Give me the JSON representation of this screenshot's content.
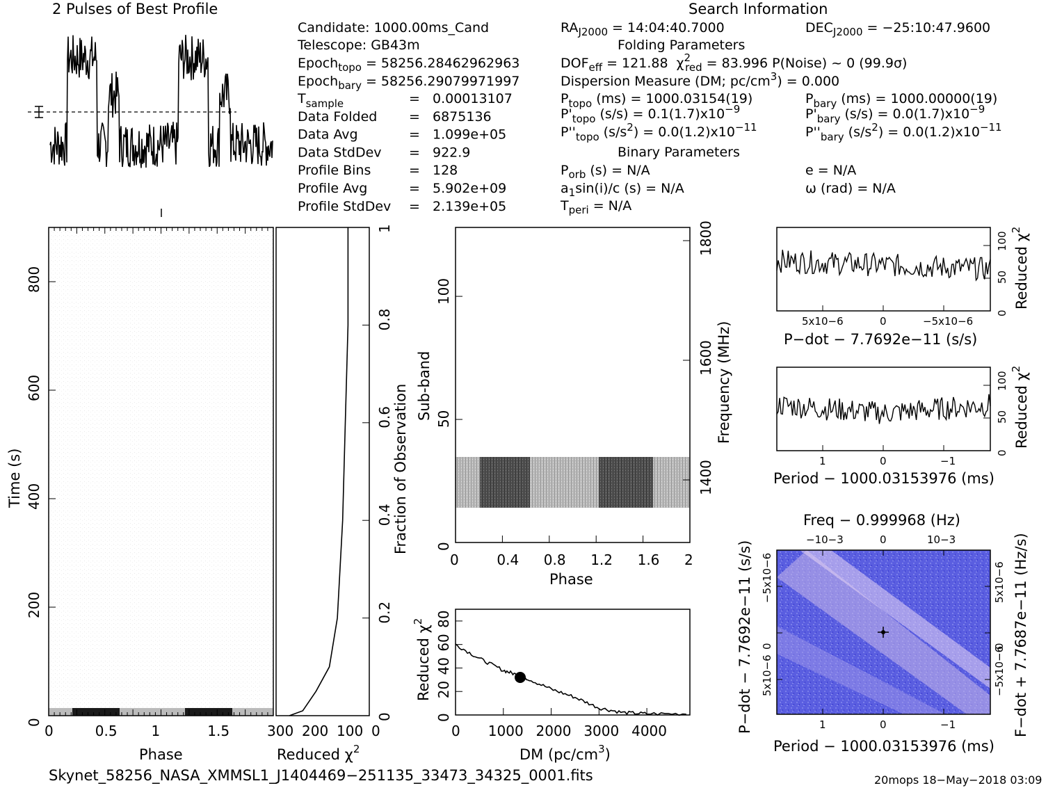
{
  "title_profile": "2 Pulses of Best Profile",
  "title_search": "Search Information",
  "info": {
    "candidate": "Candidate:  1000.00ms_Cand",
    "telescope": "Telescope:  GB43m",
    "epoch_topo_label": "Epoch",
    "epoch_topo_sub": "topo",
    "epoch_topo_val": "= 58256.28462962963",
    "epoch_bary_label": "Epoch",
    "epoch_bary_sub": "bary",
    "epoch_bary_val": "= 58256.29079971997",
    "tsample_label": "T",
    "tsample_sub": "sample",
    "rows": [
      {
        "label": "",
        "eq": "=",
        "val": "0.00013107"
      },
      {
        "label": "Data Folded",
        "eq": "=",
        "val": "6875136"
      },
      {
        "label": "Data Avg",
        "eq": "=",
        "val": "1.099e+05"
      },
      {
        "label": "Data StdDev",
        "eq": "=",
        "val": "922.9"
      },
      {
        "label": "Profile Bins",
        "eq": "=",
        "val": "128"
      },
      {
        "label": "Profile Avg",
        "eq": "=",
        "val": "5.902e+09"
      },
      {
        "label": "Profile StdDev",
        "eq": "=",
        "val": "2.139e+05"
      }
    ]
  },
  "search": {
    "ra": "RA",
    "ra_sub": "J2000",
    "ra_val": "= 14:04:40.7000",
    "dec": "DEC",
    "dec_sub": "J2000",
    "dec_val": "= −25:10:47.9600",
    "folding_title": "Folding Parameters",
    "dof": "DOF",
    "dof_sub": "eff",
    "dof_val": "= 121.88",
    "chi": "χ",
    "chi_sup": "2",
    "chi_sub": "red",
    "chi_val": "= 83.996  P(Noise) ~ 0   (99.9σ)",
    "dm_line": "Dispersion Measure (DM; pc/cm",
    "dm_sup": "3",
    "dm_val": ") = 0.000",
    "ptopo": "P",
    "ptopo_sub": "topo",
    "ptopo_val": "(ms) =  1000.03154(19)",
    "pbary": "P",
    "pbary_sub": "bary",
    "pbary_val": "(ms) =  1000.00000(19)",
    "pdtopo": "P'",
    "pdtopo_sub": "topo",
    "pdtopo_val": "(s/s) =  0.1(1.7)x10",
    "pdtopo_exp": "−9",
    "pdbary": "P'",
    "pdbary_sub": "bary",
    "pdbary_val": "(s/s) = 0.0(1.7)x10",
    "pdbary_exp": "−9",
    "pddtopo": "P''",
    "pddtopo_sub": "topo",
    "pddtopo_val": "(s/s",
    "pddtopo_sup": "2",
    "pddtopo_val2": ") = 0.0(1.2)x10",
    "pddtopo_exp": "−11",
    "pddbary": "P''",
    "pddbary_sub": "bary",
    "pddbary_val": "(s/s",
    "pddbary_sup": "2",
    "pddbary_val2": ") = 0.0(1.2)x10",
    "pddbary_exp": "−11",
    "binary_title": "Binary Parameters",
    "porb": "P",
    "porb_sub": "orb",
    "porb_val": "(s) = N/A",
    "e_val": "e = N/A",
    "asini": "a",
    "asini_sub": "1",
    "asini_val": "sin(i)/c (s) = N/A",
    "omega_val": "ω (rad) = N/A",
    "tperi": "T",
    "tperi_sub": "peri",
    "tperi_val": "= N/A"
  },
  "labels": {
    "time_axis": "Time (s)",
    "phase_axis": "Phase",
    "reduced_chi": "Reduced χ",
    "chi_sup": "2",
    "fraction_obs": "Fraction of Observation",
    "subband": "Sub-band",
    "frequency": "Frequency (MHz)",
    "phase2": "Phase",
    "dm_axis": "DM (pc/cm",
    "dm_sup": "3",
    "dm_close": ")",
    "pdot_axis": "P−dot − 7.7692e−11 (s/s)",
    "period_axis": "Period − 1000.03153976 (ms)",
    "period_axis2": "Period − 1000.03153976 (ms)",
    "freq_axis": "Freq − 0.999968 (Hz)",
    "pdot_vert": "P−dot − 7.7692e−11 (s/s)",
    "fdot_vert": "F−dot + 7.7687e−11 (Hz/s)"
  },
  "footer": {
    "filename": "Skynet_58256_NASA_XMMSL1_J1404469−251135_33473_34325_0001.fits",
    "stamp": "20mops 18−May−2018 03:09"
  },
  "chart_data": [
    {
      "type": "line",
      "title": "2 Pulses of Best Profile",
      "xlabel": "",
      "ylabel": "",
      "description_note": "",
      "x": [
        0,
        0.25,
        0.5,
        0.75,
        1,
        1.25,
        1.5,
        1.75,
        2
      ],
      "values": [
        0.2,
        0.9,
        0.85,
        0.3,
        0.25,
        0.9,
        0.85,
        0.3,
        0.2
      ]
    },
    {
      "type": "heatmap",
      "xlabel": "Phase",
      "ylabel": "Time (s)",
      "xlim": [
        0,
        2
      ],
      "ylim": [
        0,
        900
      ],
      "xticks": [
        "0",
        "0.5",
        "1",
        "1.5"
      ],
      "yticks": [
        "0",
        "200",
        "400",
        "600",
        "800"
      ]
    },
    {
      "type": "line",
      "xlabel": "Reduced χ2",
      "ylabel": "Fraction of Observation",
      "xticks": [
        "300",
        "200",
        "100",
        "0"
      ],
      "yticks": [
        "0",
        "0.2",
        "0.4",
        "0.6",
        "0.8",
        "1"
      ],
      "x": [
        300,
        250,
        200,
        150,
        120,
        100,
        90,
        80,
        80
      ],
      "y": [
        0,
        0.01,
        0.05,
        0.1,
        0.2,
        0.4,
        0.6,
        0.8,
        1.0
      ]
    },
    {
      "type": "heatmap",
      "xlabel": "Phase",
      "ylabel": "Sub-band",
      "y2label": "Frequency (MHz)",
      "xticks": [
        "0",
        "0.4",
        "0.8",
        "1.2",
        "1.6",
        "2"
      ],
      "yticks": [
        "0",
        "50",
        "100"
      ],
      "y2ticks": [
        "1400",
        "1600",
        "1800"
      ]
    },
    {
      "type": "line",
      "xlabel": "DM (pc/cm3)",
      "ylabel": "Reduced χ2",
      "xticks": [
        "0",
        "1000",
        "2000",
        "3000",
        "4000"
      ],
      "yticks": [
        "0",
        "20",
        "40",
        "60",
        "80"
      ],
      "x": [
        0,
        500,
        1000,
        1300,
        1500,
        2000,
        2500,
        3000,
        3500,
        4000,
        4900
      ],
      "y": [
        60,
        48,
        38,
        34,
        31,
        22,
        15,
        6,
        2,
        1,
        1
      ]
    },
    {
      "type": "line",
      "xlabel": "P−dot − 7.7692e−11 (s/s)",
      "ylabel": "Reduced χ2",
      "xticks": [
        "5x10−6",
        "0",
        "−5x10−6"
      ],
      "yticks": [
        "0",
        "50",
        "100"
      ]
    },
    {
      "type": "line",
      "xlabel": "Period − 1000.03153976 (ms)",
      "ylabel": "Reduced χ2",
      "xticks": [
        "1",
        "0",
        "−1"
      ],
      "yticks": [
        "0",
        "50",
        "100"
      ]
    },
    {
      "type": "heatmap",
      "xlabel": "Period − 1000.03153976 (ms)",
      "ylabel": "P−dot − 7.7692e−11 (s/s)",
      "x2label": "Freq − 0.999968 (Hz)",
      "y2label": "F−dot + 7.7687e−11 (Hz/s)",
      "xticks": [
        "1",
        "0",
        "−1"
      ],
      "x2ticks": [
        "−10−3",
        "0",
        "10−3"
      ],
      "yticks": [
        "−5x10−6",
        "0",
        "5x10−6"
      ],
      "y2ticks": [
        "5x10−6",
        "0",
        "−5x10−6"
      ]
    }
  ]
}
